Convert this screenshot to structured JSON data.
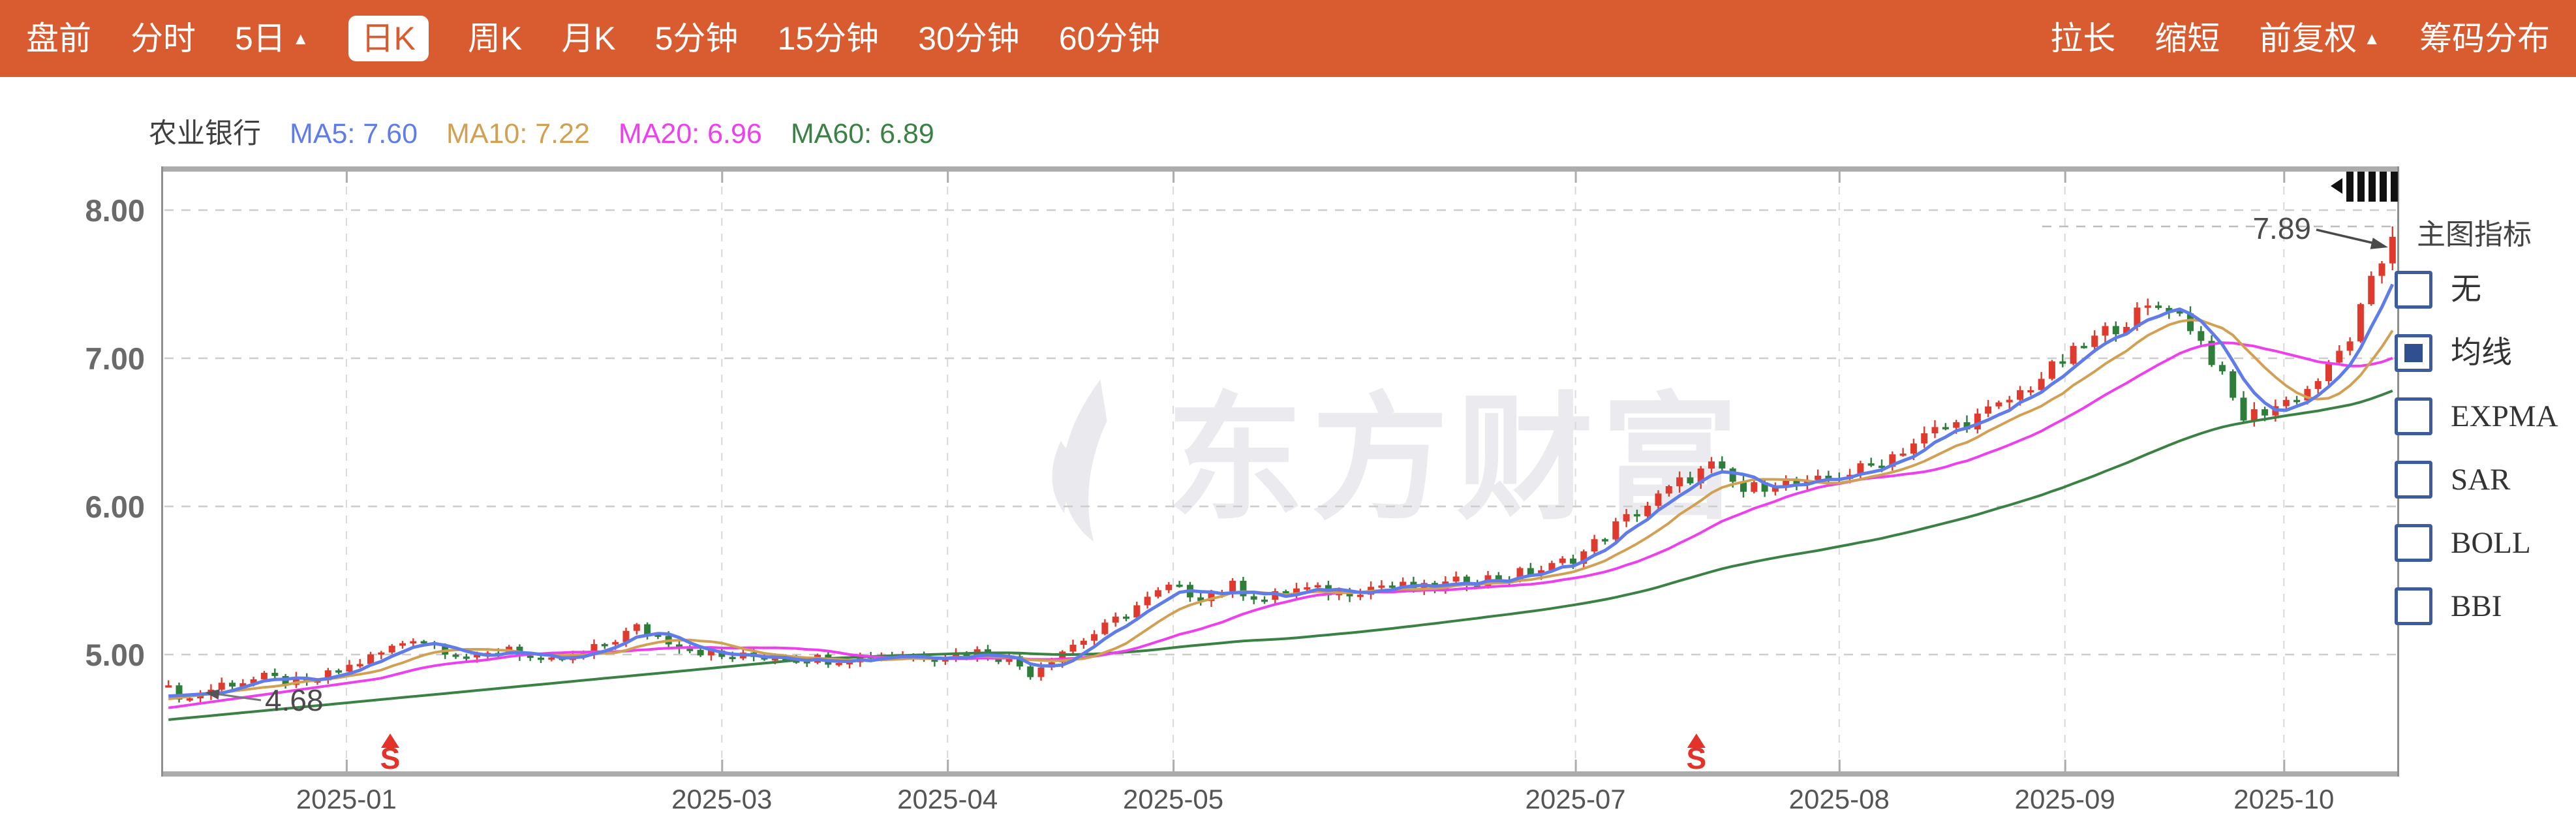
{
  "toolbar": {
    "bg": "#D95B30",
    "active_text": "#D95B30",
    "items": [
      {
        "key": "pre-market",
        "label": "盘前"
      },
      {
        "key": "intraday",
        "label": "分时"
      },
      {
        "key": "5-day",
        "label": "5日",
        "arrow": "▲"
      },
      {
        "key": "daily-k",
        "label": "日K",
        "active": true
      },
      {
        "key": "weekly-k",
        "label": "周K"
      },
      {
        "key": "monthly-k",
        "label": "月K"
      },
      {
        "key": "5-min",
        "label": "5分钟"
      },
      {
        "key": "15-min",
        "label": "15分钟"
      },
      {
        "key": "30-min",
        "label": "30分钟"
      },
      {
        "key": "60-min",
        "label": "60分钟"
      }
    ],
    "right_items": [
      {
        "key": "stretch",
        "label": "拉长"
      },
      {
        "key": "shrink",
        "label": "缩短"
      },
      {
        "key": "forward-adjusted",
        "label": "前复权",
        "arrow": "▲"
      },
      {
        "key": "chip-distribution",
        "label": "筹码分布"
      }
    ]
  },
  "legend": {
    "stock": "农业银行",
    "mas": [
      {
        "name": "MA5",
        "value": "7.60",
        "color": "#5F7CE8"
      },
      {
        "name": "MA10",
        "value": "7.22",
        "color": "#D2A052"
      },
      {
        "name": "MA20",
        "value": "6.96",
        "color": "#EE3FEE"
      },
      {
        "name": "MA60",
        "value": "6.89",
        "color": "#3B8044"
      }
    ]
  },
  "sidebar": {
    "title": "主图指标",
    "options": [
      {
        "key": "none",
        "label": "无",
        "checked": false
      },
      {
        "key": "ma",
        "label": "均线",
        "checked": true
      },
      {
        "key": "expma",
        "label": "EXPMA",
        "checked": false
      },
      {
        "key": "sar",
        "label": "SAR",
        "checked": false
      },
      {
        "key": "boll",
        "label": "BOLL",
        "checked": false
      },
      {
        "key": "bbi",
        "label": "BBI",
        "checked": false
      }
    ]
  },
  "watermark": {
    "text": "东方财富"
  },
  "chart_data": {
    "type": "candlestick",
    "symbol": "农业银行",
    "period": "日K",
    "n_days": 210,
    "ylim": [
      4.17,
      8.28
    ],
    "yticks": [
      {
        "label": "8.00",
        "value": 8
      },
      {
        "label": "7.00",
        "value": 7
      },
      {
        "label": "6.00",
        "value": 6
      },
      {
        "label": "5.00",
        "value": 5
      }
    ],
    "months": [
      {
        "label": "2025-01",
        "f": 0.082
      },
      {
        "label": "2025-03",
        "f": 0.25
      },
      {
        "label": "2025-04",
        "f": 0.351
      },
      {
        "label": "2025-05",
        "f": 0.452
      },
      {
        "label": "2025-07",
        "f": 0.632
      },
      {
        "label": "2025-08",
        "f": 0.75
      },
      {
        "label": "2025-09",
        "f": 0.851
      },
      {
        "label": "2025-10",
        "f": 0.949
      }
    ],
    "annotations": {
      "high": {
        "label": "7.89",
        "price": 7.89
      },
      "low": {
        "label": "4.68",
        "price": 4.68,
        "day": 2
      }
    },
    "event_markers": [
      {
        "glyph": "S",
        "f": 0.1016
      },
      {
        "glyph": "S",
        "f": 0.6861
      }
    ],
    "ma_legend_values": {
      "ma5": 7.6,
      "ma10": 7.22,
      "ma20": 6.96,
      "ma60": 6.89
    },
    "ma_left_values": {
      "ma5": 4.72,
      "ma10": 4.7,
      "ma20": 4.64,
      "ma60": 4.56
    },
    "last_close": 7.82,
    "close_anchors": [
      [
        0,
        4.76
      ],
      [
        2,
        4.7
      ],
      [
        5,
        4.8
      ],
      [
        9,
        4.84
      ],
      [
        13,
        4.8
      ],
      [
        17,
        4.92
      ],
      [
        20,
        5.01
      ],
      [
        23,
        5.12
      ],
      [
        26,
        5.04
      ],
      [
        29,
        4.96
      ],
      [
        32,
        5.06
      ],
      [
        35,
        4.93
      ],
      [
        39,
        5.0
      ],
      [
        44,
        5.18
      ],
      [
        48,
        5.07
      ],
      [
        52,
        4.98
      ],
      [
        57,
        4.99
      ],
      [
        62,
        4.97
      ],
      [
        67,
        5.0
      ],
      [
        72,
        4.99
      ],
      [
        76,
        5.02
      ],
      [
        79,
        4.97
      ],
      [
        81,
        4.88
      ],
      [
        84,
        5.03
      ],
      [
        88,
        5.18
      ],
      [
        91,
        5.33
      ],
      [
        94,
        5.45
      ],
      [
        97,
        5.4
      ],
      [
        100,
        5.46
      ],
      [
        103,
        5.37
      ],
      [
        106,
        5.44
      ],
      [
        110,
        5.42
      ],
      [
        114,
        5.47
      ],
      [
        118,
        5.44
      ],
      [
        122,
        5.5
      ],
      [
        126,
        5.53
      ],
      [
        130,
        5.59
      ],
      [
        133,
        5.69
      ],
      [
        136,
        5.87
      ],
      [
        139,
        6.01
      ],
      [
        142,
        6.16
      ],
      [
        145,
        6.27
      ],
      [
        148,
        6.1
      ],
      [
        151,
        6.17
      ],
      [
        154,
        6.14
      ],
      [
        157,
        6.21
      ],
      [
        160,
        6.27
      ],
      [
        163,
        6.39
      ],
      [
        166,
        6.51
      ],
      [
        169,
        6.57
      ],
      [
        172,
        6.67
      ],
      [
        175,
        6.82
      ],
      [
        178,
        6.98
      ],
      [
        180,
        7.08
      ],
      [
        182,
        7.18
      ],
      [
        184,
        7.26
      ],
      [
        186,
        7.33
      ],
      [
        188,
        7.36
      ],
      [
        190,
        7.22
      ],
      [
        192,
        7.0
      ],
      [
        194,
        6.72
      ],
      [
        195,
        6.6
      ],
      [
        197,
        6.65
      ],
      [
        199,
        6.71
      ],
      [
        201,
        6.79
      ],
      [
        203,
        6.93
      ],
      [
        205,
        7.14
      ],
      [
        206,
        7.32
      ],
      [
        207,
        7.5
      ],
      [
        208,
        7.65
      ],
      [
        209,
        7.82
      ]
    ],
    "colors": {
      "up": "#DF3A2E",
      "down": "#2E7D3B",
      "ma5": "#5F7CE8",
      "ma10": "#D2A052",
      "ma20": "#EE3FEE",
      "ma60": "#3B8044",
      "grid": "#CDCDCD",
      "border": "#ACACAC",
      "marker": "#E3322A",
      "watermark": "#EAEAEF",
      "annotation": "#4A4A4A"
    }
  }
}
